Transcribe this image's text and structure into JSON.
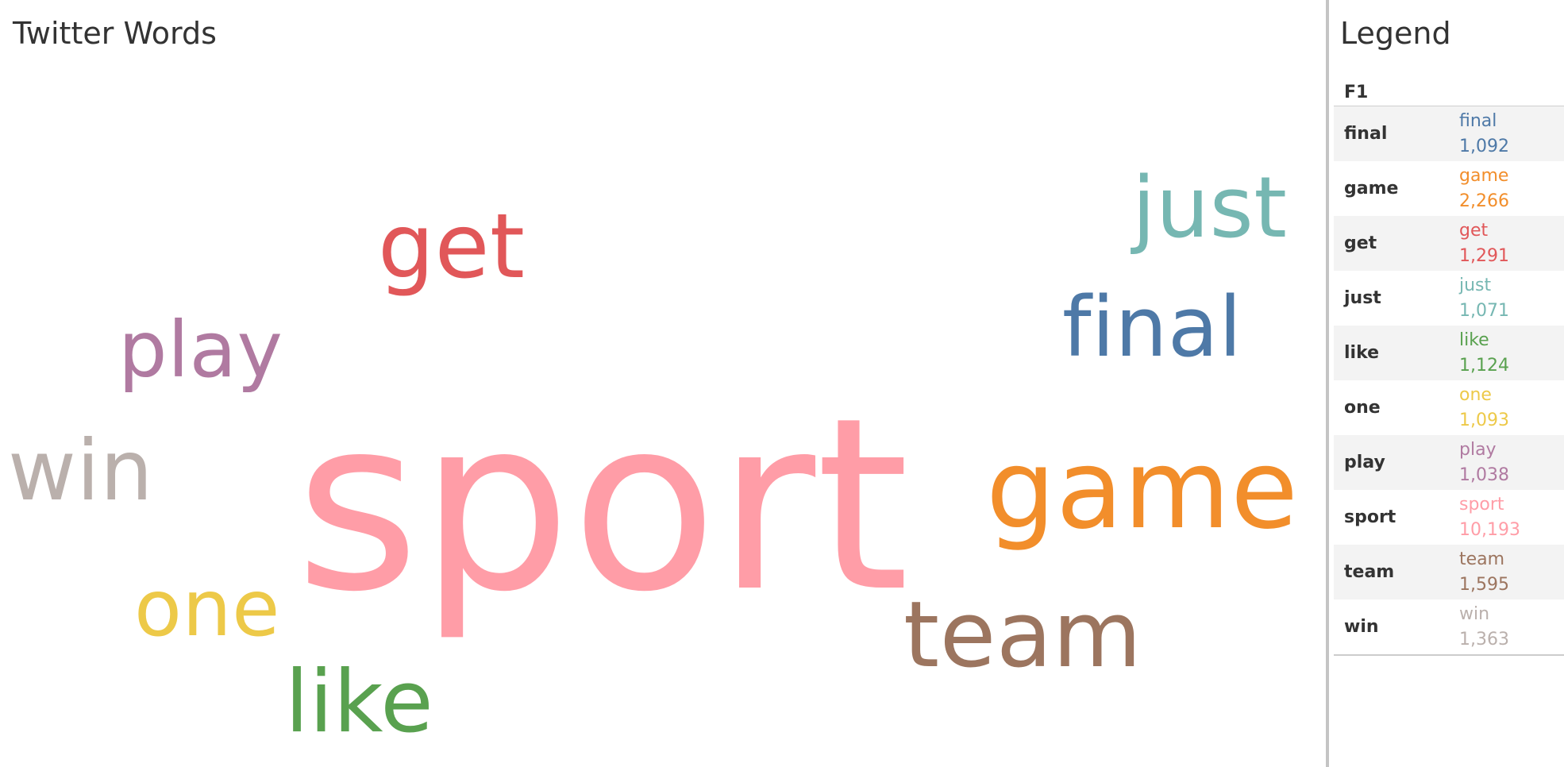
{
  "page": {
    "title": "Twitter Words",
    "legend_title": "Legend",
    "legend_header": "F1"
  },
  "chart_data": {
    "type": "word-cloud",
    "words": [
      {
        "word": "final",
        "count": 1092,
        "count_label": "1,092",
        "color": "#4E79A7"
      },
      {
        "word": "game",
        "count": 2266,
        "count_label": "2,266",
        "color": "#F28E2B"
      },
      {
        "word": "get",
        "count": 1291,
        "count_label": "1,291",
        "color": "#E15759"
      },
      {
        "word": "just",
        "count": 1071,
        "count_label": "1,071",
        "color": "#76B7B2"
      },
      {
        "word": "like",
        "count": 1124,
        "count_label": "1,124",
        "color": "#59A14F"
      },
      {
        "word": "one",
        "count": 1093,
        "count_label": "1,093",
        "color": "#EDC948"
      },
      {
        "word": "play",
        "count": 1038,
        "count_label": "1,038",
        "color": "#B07AA1"
      },
      {
        "word": "sport",
        "count": 10193,
        "count_label": "10,193",
        "color": "#FF9DA7"
      },
      {
        "word": "team",
        "count": 1595,
        "count_label": "1,595",
        "color": "#9C755F"
      },
      {
        "word": "win",
        "count": 1363,
        "count_label": "1,363",
        "color": "#BAB0AC"
      }
    ]
  }
}
